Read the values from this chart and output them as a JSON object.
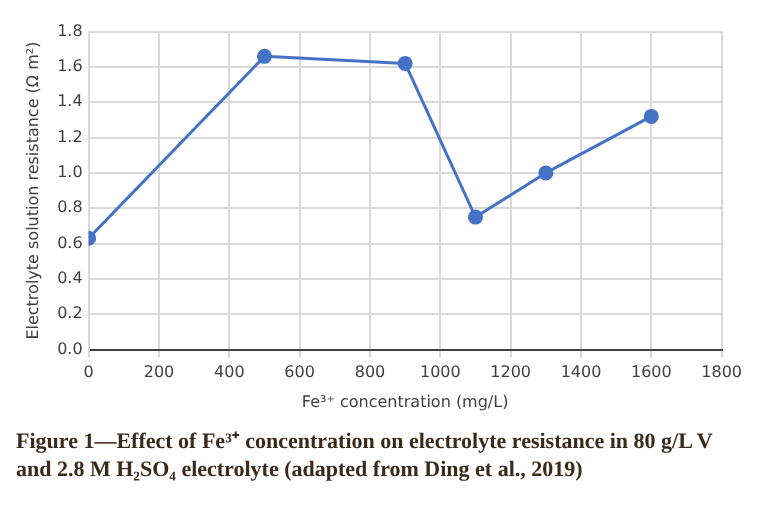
{
  "chart_data": {
    "type": "line",
    "xlabel": "Fe³⁺ concentration (mg/L)",
    "ylabel": "Electrolyte solution resistance (Ω m²)",
    "x": [
      0,
      500,
      900,
      1100,
      1300,
      1600
    ],
    "series": [
      {
        "color": "#4472c4",
        "values": [
          0.63,
          1.66,
          1.62,
          0.75,
          1.0,
          1.32
        ]
      }
    ],
    "xlim": [
      0,
      1800
    ],
    "xticks": [
      0,
      200,
      400,
      600,
      800,
      1000,
      1200,
      1400,
      1600,
      1800
    ],
    "ylim": [
      0,
      1.8
    ],
    "yticks": [
      {
        "value": 0,
        "label": "0.0"
      },
      {
        "value": 0.2,
        "label": "0.2"
      },
      {
        "value": 0.4,
        "label": "0.4"
      },
      {
        "value": 0.6,
        "label": "0.6"
      },
      {
        "value": 0.8,
        "label": "0.8"
      },
      {
        "value": 1,
        "label": "1.0"
      },
      {
        "value": 1.2,
        "label": "1.2"
      },
      {
        "value": 1.4,
        "label": "1.4"
      },
      {
        "value": 1.6,
        "label": "1.6"
      },
      {
        "value": 1.8,
        "label": "1.8"
      }
    ],
    "grid": true,
    "legend": false,
    "marker": "circle",
    "line_style": "solid",
    "annotations": [
      "Figure 1—Effect of Fe³⁺ concentration on electrolyte resistance in 80 g/L V and 2.8 M H₂SO₄  electrolyte (adapted from Ding et al., 2019)"
    ]
  }
}
